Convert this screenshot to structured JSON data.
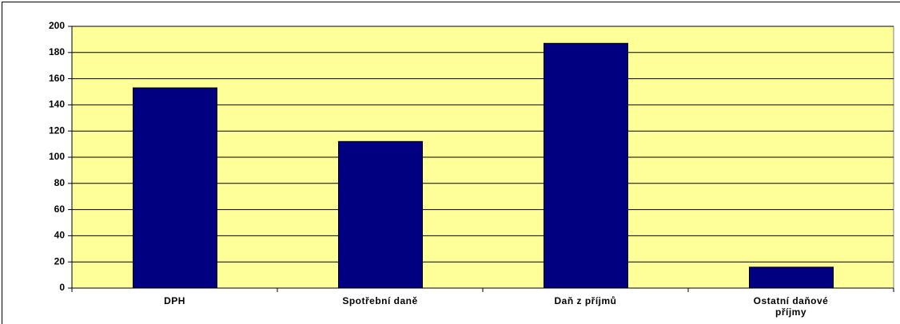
{
  "chart_data": {
    "type": "bar",
    "categories": [
      "DPH",
      "Spotřební daně",
      "Daň z příjmů",
      "Ostatní daňové příjmy"
    ],
    "values": [
      153,
      112,
      187,
      16
    ],
    "color": "#000080",
    "plot_background": "#ffff99",
    "ylim": [
      0,
      200
    ],
    "yticks": [
      0,
      20,
      40,
      60,
      80,
      100,
      120,
      140,
      160,
      180,
      200
    ],
    "grid": true
  }
}
